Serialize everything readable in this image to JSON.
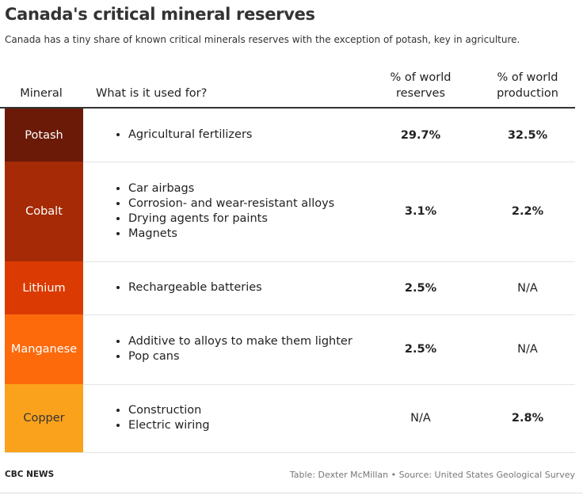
{
  "title": "Canada's critical mineral reserves",
  "subtitle": "Canada has a tiny share of known critical minerals reserves with the exception of potash, key in agriculture.",
  "header": {
    "mineral": "Mineral",
    "use": "What is it used for?",
    "reserves": "% of world reserves",
    "production": "% of world production"
  },
  "chart_data": {
    "type": "table",
    "columns": [
      "Mineral",
      "What is it used for?",
      "% of world reserves",
      "% of world production"
    ],
    "rows": [
      {
        "mineral": "Potash",
        "color": "#6b1a08",
        "text_color": "#ffffff",
        "uses": [
          "Agricultural fertilizers"
        ],
        "reserves": "29.7%",
        "production": "32.5%",
        "reserves_bold": true,
        "production_bold": true
      },
      {
        "mineral": "Cobalt",
        "color": "#a52a05",
        "text_color": "#ffffff",
        "uses": [
          "Car airbags",
          "Corrosion- and wear-resistant alloys",
          "Drying agents for paints",
          "Magnets"
        ],
        "reserves": "3.1%",
        "production": "2.2%",
        "reserves_bold": true,
        "production_bold": true
      },
      {
        "mineral": "Lithium",
        "color": "#db3b02",
        "text_color": "#ffffff",
        "uses": [
          "Rechargeable batteries"
        ],
        "reserves": "2.5%",
        "production": "N/A",
        "reserves_bold": true,
        "production_bold": false
      },
      {
        "mineral": "Manganese",
        "color": "#fc6a0c",
        "text_color": "#ffffff",
        "uses": [
          "Additive to alloys to make them lighter",
          "Pop cans"
        ],
        "reserves": "2.5%",
        "production": "N/A",
        "reserves_bold": true,
        "production_bold": false
      },
      {
        "mineral": "Copper",
        "color": "#fba21c",
        "text_color": "#333333",
        "uses": [
          "Construction",
          "Electric wiring"
        ],
        "reserves": "N/A",
        "production": "2.8%",
        "reserves_bold": false,
        "production_bold": true
      }
    ]
  },
  "footer": {
    "brand": "CBC NEWS",
    "credit": "Table: Dexter McMillan • Source: United States Geological Survey"
  }
}
